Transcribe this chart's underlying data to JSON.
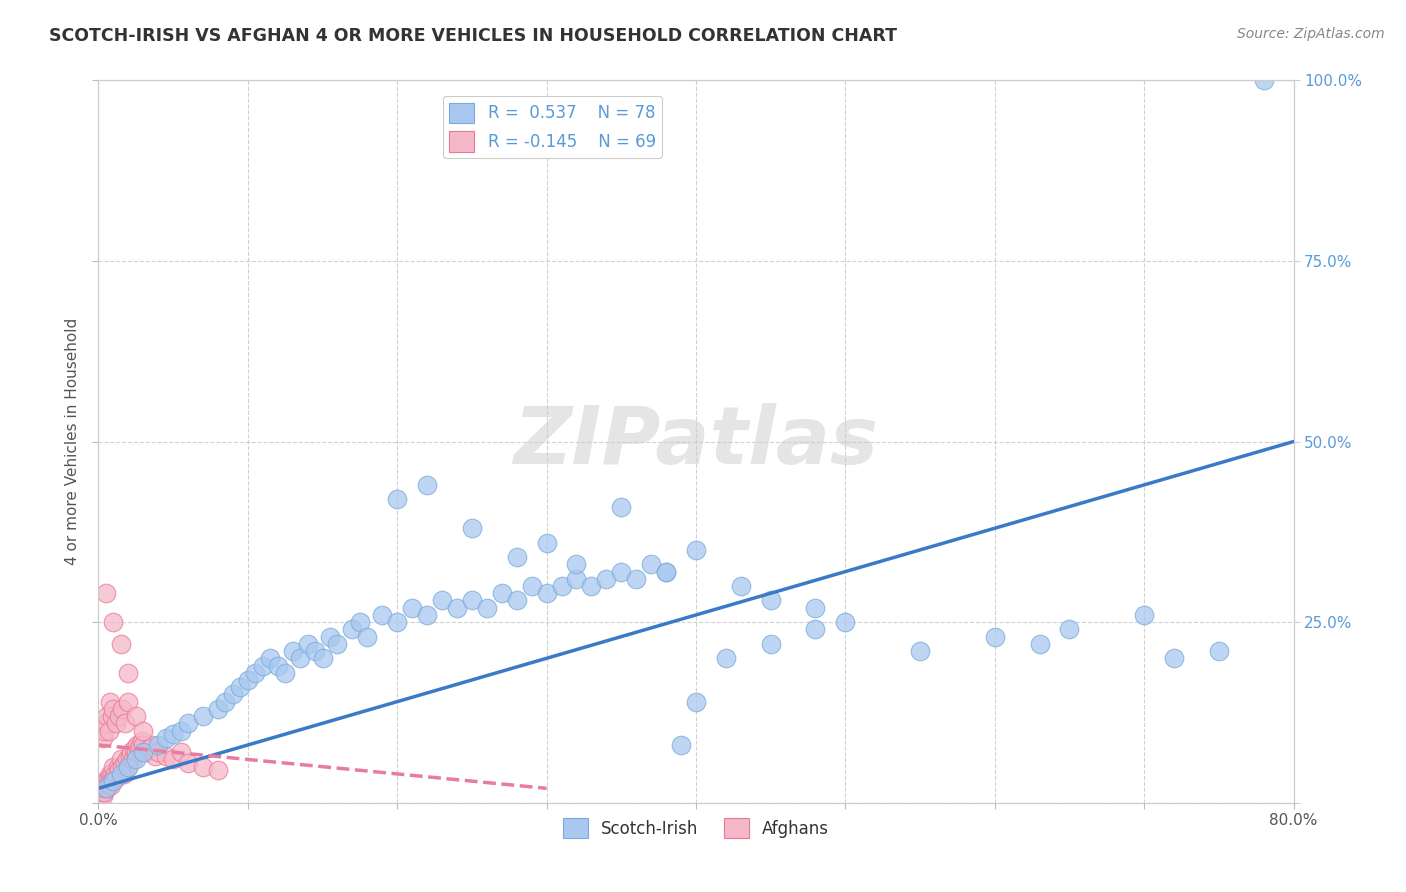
{
  "title": "SCOTCH-IRISH VS AFGHAN 4 OR MORE VEHICLES IN HOUSEHOLD CORRELATION CHART",
  "source": "Source: ZipAtlas.com",
  "ylabel_label": "4 or more Vehicles in Household",
  "legend_blue_R": "0.537",
  "legend_blue_N": "78",
  "legend_pink_R": "-0.145",
  "legend_pink_N": "69",
  "blue_scatter_color": "#A8C8F0",
  "blue_scatter_edge": "#7AAAD8",
  "pink_scatter_color": "#F5B8C8",
  "pink_scatter_edge": "#E87898",
  "blue_line_color": "#3A7AC8",
  "pink_line_color": "#E87CA0",
  "watermark": "ZIPatlas",
  "right_tick_color": "#5A9AD8",
  "background_color": "#FFFFFF",
  "scotch_irish_x": [
    0.5,
    1.0,
    1.5,
    2.0,
    2.5,
    3.0,
    4.0,
    4.5,
    5.0,
    5.5,
    6.0,
    7.0,
    8.0,
    8.5,
    9.0,
    9.5,
    10.0,
    10.5,
    11.0,
    11.5,
    12.0,
    12.5,
    13.0,
    13.5,
    14.0,
    14.5,
    15.0,
    15.5,
    16.0,
    17.0,
    17.5,
    18.0,
    19.0,
    20.0,
    21.0,
    22.0,
    23.0,
    24.0,
    25.0,
    26.0,
    27.0,
    28.0,
    29.0,
    30.0,
    31.0,
    32.0,
    33.0,
    34.0,
    35.0,
    36.0,
    37.0,
    38.0,
    39.0,
    40.0,
    42.0,
    45.0,
    48.0,
    50.0,
    55.0,
    60.0,
    63.0,
    65.0,
    70.0,
    72.0,
    75.0,
    78.0,
    20.0,
    22.0,
    25.0,
    28.0,
    30.0,
    32.0,
    35.0,
    38.0,
    40.0,
    43.0,
    45.0,
    48.0
  ],
  "scotch_irish_y": [
    2.0,
    3.0,
    4.0,
    5.0,
    6.0,
    7.0,
    8.0,
    9.0,
    9.5,
    10.0,
    11.0,
    12.0,
    13.0,
    14.0,
    15.0,
    16.0,
    17.0,
    18.0,
    19.0,
    20.0,
    19.0,
    18.0,
    21.0,
    20.0,
    22.0,
    21.0,
    20.0,
    23.0,
    22.0,
    24.0,
    25.0,
    23.0,
    26.0,
    25.0,
    27.0,
    26.0,
    28.0,
    27.0,
    28.0,
    27.0,
    29.0,
    28.0,
    30.0,
    29.0,
    30.0,
    31.0,
    30.0,
    31.0,
    32.0,
    31.0,
    33.0,
    32.0,
    8.0,
    14.0,
    20.0,
    22.0,
    24.0,
    25.0,
    21.0,
    23.0,
    22.0,
    24.0,
    26.0,
    20.0,
    21.0,
    100.0,
    42.0,
    44.0,
    38.0,
    34.0,
    36.0,
    33.0,
    41.0,
    32.0,
    35.0,
    30.0,
    28.0,
    27.0
  ],
  "afghan_x": [
    0.1,
    0.15,
    0.2,
    0.25,
    0.3,
    0.35,
    0.4,
    0.45,
    0.5,
    0.55,
    0.6,
    0.65,
    0.7,
    0.75,
    0.8,
    0.85,
    0.9,
    0.95,
    1.0,
    1.1,
    1.2,
    1.3,
    1.4,
    1.5,
    1.6,
    1.7,
    1.8,
    1.9,
    2.0,
    2.1,
    2.2,
    2.3,
    2.4,
    2.5,
    2.6,
    2.7,
    2.8,
    2.9,
    3.0,
    3.2,
    3.4,
    3.6,
    3.8,
    4.0,
    4.5,
    5.0,
    5.5,
    6.0,
    7.0,
    8.0,
    0.3,
    0.4,
    0.5,
    0.6,
    0.7,
    0.8,
    0.9,
    1.0,
    1.2,
    1.4,
    1.6,
    1.8,
    2.0,
    2.5,
    3.0,
    0.5,
    1.0,
    1.5,
    2.0
  ],
  "afghan_y": [
    1.0,
    1.5,
    2.0,
    2.5,
    1.0,
    1.5,
    2.0,
    3.0,
    2.5,
    3.0,
    2.0,
    3.5,
    2.5,
    4.0,
    3.0,
    2.5,
    4.0,
    3.5,
    5.0,
    4.0,
    3.5,
    5.0,
    4.5,
    6.0,
    5.0,
    4.0,
    5.5,
    6.0,
    5.0,
    6.5,
    7.0,
    6.0,
    7.5,
    7.0,
    8.0,
    7.5,
    8.0,
    8.5,
    8.0,
    7.0,
    7.5,
    8.0,
    6.5,
    7.0,
    6.5,
    6.0,
    7.0,
    5.5,
    5.0,
    4.5,
    9.0,
    10.0,
    11.0,
    12.0,
    10.0,
    14.0,
    12.0,
    13.0,
    11.0,
    12.0,
    13.0,
    11.0,
    14.0,
    12.0,
    10.0,
    29.0,
    25.0,
    22.0,
    18.0
  ],
  "blue_line_x0": 0.0,
  "blue_line_y0": 2.0,
  "blue_line_x1": 80.0,
  "blue_line_y1": 50.0,
  "pink_line_x0": 0.0,
  "pink_line_y0": 8.0,
  "pink_line_x1": 30.0,
  "pink_line_y1": 2.0,
  "xlim": [
    0,
    80
  ],
  "ylim": [
    0,
    100
  ],
  "xticks": [
    0,
    10,
    20,
    30,
    40,
    50,
    60,
    70,
    80
  ],
  "yticks": [
    0,
    25,
    50,
    75,
    100
  ],
  "xtick_labels": [
    "0.0%",
    "",
    "",
    "",
    "",
    "",
    "",
    "",
    "80.0%"
  ],
  "ytick_labels_left": [
    "",
    "",
    "",
    "",
    ""
  ],
  "ytick_labels_right": [
    "",
    "25.0%",
    "50.0%",
    "75.0%",
    "100.0%"
  ]
}
